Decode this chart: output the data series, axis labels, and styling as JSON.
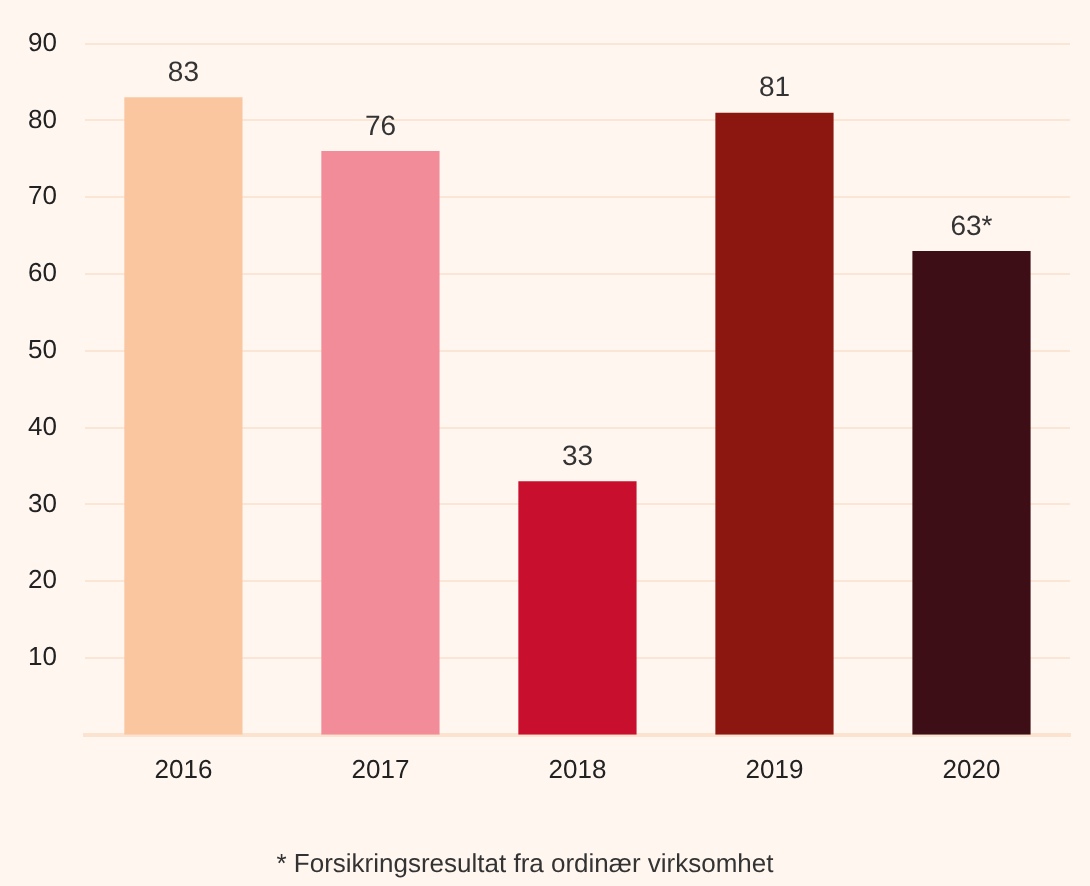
{
  "chart_data": {
    "type": "bar",
    "categories": [
      "2016",
      "2017",
      "2018",
      "2019",
      "2020"
    ],
    "values": [
      83,
      76,
      33,
      81,
      63
    ],
    "colors": [
      "#f9c6a0",
      "#f28c98",
      "#c8102e",
      "#8b1710",
      "#3e0e16"
    ],
    "value_labels": [
      "83",
      "76",
      "33",
      "81",
      "63*"
    ],
    "ylim": [
      0,
      90
    ],
    "yticks": [
      10,
      20,
      30,
      40,
      50,
      60,
      70,
      80,
      90
    ],
    "grid": "y",
    "legend": false,
    "annotations": [
      "* Forsikringsresultat fra ordinær virksomhet"
    ]
  }
}
